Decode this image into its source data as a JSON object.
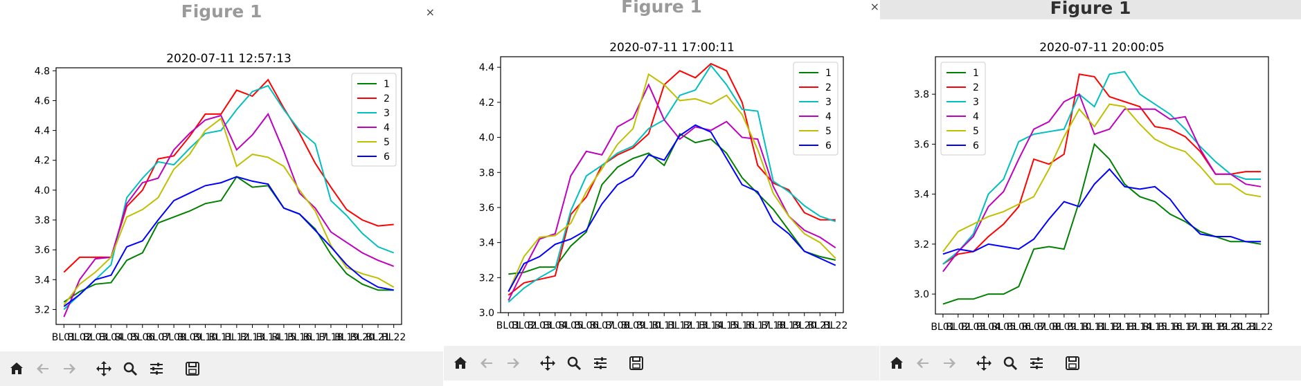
{
  "windows": [
    {
      "title": "Figure 1",
      "close_glyph": "×",
      "toolbar": [
        "home-icon",
        "back-arrow-icon",
        "forward-arrow-icon",
        "pan-icon",
        "zoom-icon",
        "subplots-config-icon",
        "save-icon"
      ]
    },
    {
      "title": "Figure 1",
      "close_glyph": "×",
      "toolbar": [
        "home-icon",
        "back-arrow-icon",
        "forward-arrow-icon",
        "pan-icon",
        "zoom-icon",
        "subplots-config-icon",
        "save-icon"
      ]
    },
    {
      "title": "Figure 1",
      "toolbar": [
        "home-icon",
        "back-arrow-icon",
        "forward-arrow-icon",
        "pan-icon",
        "zoom-icon",
        "subplots-config-icon",
        "save-icon"
      ]
    }
  ],
  "chart_data": [
    {
      "type": "line",
      "title": "2020-07-11 12:57:13",
      "xlabel": "",
      "ylabel": "",
      "categories": [
        "BL01",
        "BL02",
        "BL03",
        "BL04",
        "BL05",
        "BL06",
        "BL07",
        "BL08",
        "BL09",
        "BL10",
        "BL11",
        "BL12",
        "BL13",
        "BL14",
        "BL15",
        "BL16",
        "BL17",
        "BL18",
        "BL19",
        "BL20",
        "BL21",
        "BL22"
      ],
      "tick_labels": [
        "BL01",
        "BL02",
        "BL03",
        "BL04",
        "BL05",
        "BL06",
        "BL07",
        "BL08",
        "BL09",
        "BL10",
        "BL11",
        "BL12",
        "BL13",
        "BL14",
        "BL15",
        "BL16",
        "BL17",
        "BL18",
        "BL19",
        "BL20",
        "BL21",
        "BL22"
      ],
      "ylim": [
        3.1,
        4.82
      ],
      "yticks": [
        3.2,
        3.4,
        3.6,
        3.8,
        4.0,
        4.2,
        4.4,
        4.6,
        4.8
      ],
      "ytick_labels": [
        "3.2",
        "3.4",
        "3.6",
        "3.8",
        "4.0",
        "4.2",
        "4.4",
        "4.6",
        "4.8"
      ],
      "legend_position": "top-right",
      "grid": false,
      "series": [
        {
          "name": "1",
          "color": "#008000",
          "values": [
            3.25,
            3.32,
            3.37,
            3.38,
            3.53,
            3.58,
            3.78,
            3.82,
            3.86,
            3.91,
            3.93,
            4.09,
            4.02,
            4.03,
            3.88,
            3.84,
            3.74,
            3.57,
            3.44,
            3.37,
            3.33,
            3.33
          ]
        },
        {
          "name": "2",
          "color": "#ff0000",
          "values": [
            3.45,
            3.55,
            3.55,
            3.55,
            3.89,
            4.0,
            4.21,
            4.23,
            4.36,
            4.51,
            4.51,
            4.67,
            4.63,
            4.74,
            4.55,
            4.38,
            4.18,
            4.02,
            3.87,
            3.8,
            3.76,
            3.77
          ]
        },
        {
          "name": "3",
          "color": "#00bfbf",
          "values": [
            3.2,
            3.3,
            3.4,
            3.5,
            3.95,
            4.08,
            4.19,
            4.17,
            4.28,
            4.38,
            4.4,
            4.54,
            4.66,
            4.7,
            4.54,
            4.4,
            4.31,
            3.93,
            3.83,
            3.71,
            3.62,
            3.58
          ]
        },
        {
          "name": "4",
          "color": "#bf00bf",
          "values": [
            3.15,
            3.4,
            3.54,
            3.55,
            3.91,
            4.05,
            4.08,
            4.27,
            4.38,
            4.47,
            4.5,
            4.27,
            4.37,
            4.51,
            4.26,
            3.98,
            3.88,
            3.72,
            3.65,
            3.58,
            3.53,
            3.49
          ]
        },
        {
          "name": "5",
          "color": "#bfbf00",
          "values": [
            3.23,
            3.37,
            3.45,
            3.55,
            3.82,
            3.87,
            3.95,
            4.14,
            4.24,
            4.4,
            4.48,
            4.16,
            4.24,
            4.22,
            4.16,
            4.0,
            3.86,
            3.63,
            3.48,
            3.44,
            3.41,
            3.35
          ]
        },
        {
          "name": "6",
          "color": "#0000ff",
          "values": [
            3.22,
            3.3,
            3.4,
            3.43,
            3.62,
            3.66,
            3.8,
            3.93,
            3.98,
            4.03,
            4.05,
            4.09,
            4.06,
            4.04,
            3.88,
            3.84,
            3.73,
            3.62,
            3.5,
            3.41,
            3.35,
            3.33
          ]
        }
      ]
    },
    {
      "type": "line",
      "title": "2020-07-11 17:00:11",
      "xlabel": "",
      "ylabel": "",
      "categories": [
        "BL01",
        "BL02",
        "BL03",
        "BL04",
        "BL05",
        "BL06",
        "BL07",
        "BL08",
        "BL09",
        "BL10",
        "BL11",
        "BL12",
        "BL13",
        "BL14",
        "BL15",
        "BL16",
        "BL17",
        "BL18",
        "BL19",
        "BL20",
        "BL21",
        "BL22"
      ],
      "tick_labels": [
        "BL01",
        "BL02",
        "BL03",
        "BL04",
        "BL05",
        "BL06",
        "BL07",
        "BL08",
        "BL09",
        "BL10",
        "BL11",
        "BL12",
        "BL13",
        "BL14",
        "BL15",
        "BL16",
        "BL17",
        "BL18",
        "BL19",
        "BL20",
        "BL21",
        "BL22"
      ],
      "ylim": [
        3.0,
        4.46
      ],
      "yticks": [
        3.0,
        3.2,
        3.4,
        3.6,
        3.8,
        4.0,
        4.2,
        4.4
      ],
      "ytick_labels": [
        "3.0",
        "3.2",
        "3.4",
        "3.6",
        "3.8",
        "4.0",
        "4.2",
        "4.4"
      ],
      "legend_position": "top-right",
      "grid": false,
      "series": [
        {
          "name": "1",
          "color": "#008000",
          "values": [
            3.22,
            3.23,
            3.26,
            3.26,
            3.38,
            3.46,
            3.73,
            3.83,
            3.88,
            3.91,
            3.84,
            4.02,
            3.97,
            3.99,
            3.91,
            3.77,
            3.68,
            3.59,
            3.47,
            3.35,
            3.32,
            3.3
          ]
        },
        {
          "name": "2",
          "color": "#ff0000",
          "values": [
            3.1,
            3.17,
            3.19,
            3.21,
            3.56,
            3.66,
            3.84,
            3.9,
            3.94,
            4.02,
            4.3,
            4.38,
            4.34,
            4.42,
            4.38,
            4.2,
            3.84,
            3.74,
            3.7,
            3.57,
            3.53,
            3.53
          ]
        },
        {
          "name": "3",
          "color": "#00bfbf",
          "values": [
            3.06,
            3.14,
            3.2,
            3.25,
            3.58,
            3.78,
            3.84,
            3.91,
            3.95,
            4.05,
            4.1,
            4.24,
            4.27,
            4.41,
            4.3,
            4.16,
            4.15,
            3.75,
            3.69,
            3.61,
            3.55,
            3.52
          ]
        },
        {
          "name": "4",
          "color": "#bf00bf",
          "values": [
            3.07,
            3.25,
            3.42,
            3.45,
            3.78,
            3.92,
            3.9,
            4.06,
            4.11,
            4.3,
            4.1,
            3.99,
            4.06,
            4.04,
            4.09,
            4.0,
            3.99,
            3.72,
            3.55,
            3.47,
            3.43,
            3.37
          ]
        },
        {
          "name": "5",
          "color": "#bfbf00",
          "values": [
            3.12,
            3.32,
            3.43,
            3.44,
            3.51,
            3.69,
            3.82,
            3.96,
            4.05,
            4.36,
            4.3,
            4.21,
            4.22,
            4.19,
            4.24,
            4.13,
            3.93,
            3.68,
            3.55,
            3.45,
            3.4,
            3.31
          ]
        },
        {
          "name": "6",
          "color": "#0000ff",
          "values": [
            3.12,
            3.28,
            3.32,
            3.39,
            3.42,
            3.47,
            3.62,
            3.73,
            3.78,
            3.9,
            3.87,
            4.01,
            4.07,
            4.03,
            3.88,
            3.73,
            3.69,
            3.52,
            3.45,
            3.35,
            3.31,
            3.27
          ]
        }
      ]
    },
    {
      "type": "line",
      "title": "2020-07-11 20:00:05",
      "xlabel": "",
      "ylabel": "",
      "categories": [
        "BL01",
        "BL02",
        "BL03",
        "BL04",
        "BL05",
        "BL06",
        "BL07",
        "BL08",
        "BL09",
        "BL10",
        "BL11",
        "BL12",
        "BL13",
        "BL14",
        "BL15",
        "BL16",
        "BL17",
        "BL18",
        "BL19",
        "BL20",
        "BL21",
        "BL22"
      ],
      "tick_labels": [
        "BL01",
        "BL02",
        "BL03",
        "BL04",
        "BL05",
        "BL06",
        "BL07",
        "BL08",
        "BL09",
        "BL10",
        "BL11",
        "BL12",
        "BL13",
        "BL14",
        "BL15",
        "BL16",
        "BL17",
        "BL18",
        "BL19",
        "BL20",
        "BL21",
        "BL22"
      ],
      "ylim": [
        2.92,
        3.95
      ],
      "yticks": [
        3.0,
        3.2,
        3.4,
        3.6,
        3.8
      ],
      "ytick_labels": [
        "3.0",
        "3.2",
        "3.4",
        "3.6",
        "3.8"
      ],
      "legend_position": "top-left",
      "grid": false,
      "series": [
        {
          "name": "1",
          "color": "#008000",
          "values": [
            2.96,
            2.98,
            2.98,
            3.0,
            3.0,
            3.03,
            3.18,
            3.19,
            3.18,
            3.37,
            3.6,
            3.54,
            3.44,
            3.39,
            3.37,
            3.32,
            3.29,
            3.25,
            3.23,
            3.21,
            3.21,
            3.2
          ]
        },
        {
          "name": "2",
          "color": "#ff0000",
          "values": [
            3.12,
            3.16,
            3.17,
            3.23,
            3.28,
            3.35,
            3.54,
            3.52,
            3.56,
            3.88,
            3.87,
            3.79,
            3.77,
            3.75,
            3.67,
            3.66,
            3.63,
            3.57,
            3.48,
            3.48,
            3.49,
            3.49
          ]
        },
        {
          "name": "3",
          "color": "#00bfbf",
          "values": [
            3.12,
            3.17,
            3.24,
            3.4,
            3.46,
            3.61,
            3.64,
            3.65,
            3.66,
            3.8,
            3.75,
            3.88,
            3.89,
            3.8,
            3.76,
            3.72,
            3.66,
            3.59,
            3.53,
            3.48,
            3.46,
            3.46
          ]
        },
        {
          "name": "4",
          "color": "#bf00bf",
          "values": [
            3.09,
            3.17,
            3.23,
            3.35,
            3.41,
            3.54,
            3.66,
            3.69,
            3.77,
            3.8,
            3.64,
            3.66,
            3.74,
            3.74,
            3.74,
            3.7,
            3.71,
            3.58,
            3.48,
            3.48,
            3.44,
            3.43
          ]
        },
        {
          "name": "5",
          "color": "#bfbf00",
          "values": [
            3.17,
            3.25,
            3.28,
            3.31,
            3.33,
            3.36,
            3.39,
            3.5,
            3.63,
            3.74,
            3.67,
            3.76,
            3.75,
            3.68,
            3.62,
            3.59,
            3.57,
            3.51,
            3.44,
            3.44,
            3.4,
            3.39
          ]
        },
        {
          "name": "6",
          "color": "#0000ff",
          "values": [
            3.16,
            3.18,
            3.17,
            3.2,
            3.19,
            3.18,
            3.22,
            3.3,
            3.37,
            3.35,
            3.44,
            3.5,
            3.43,
            3.42,
            3.43,
            3.38,
            3.3,
            3.24,
            3.23,
            3.23,
            3.21,
            3.21
          ]
        }
      ]
    }
  ]
}
